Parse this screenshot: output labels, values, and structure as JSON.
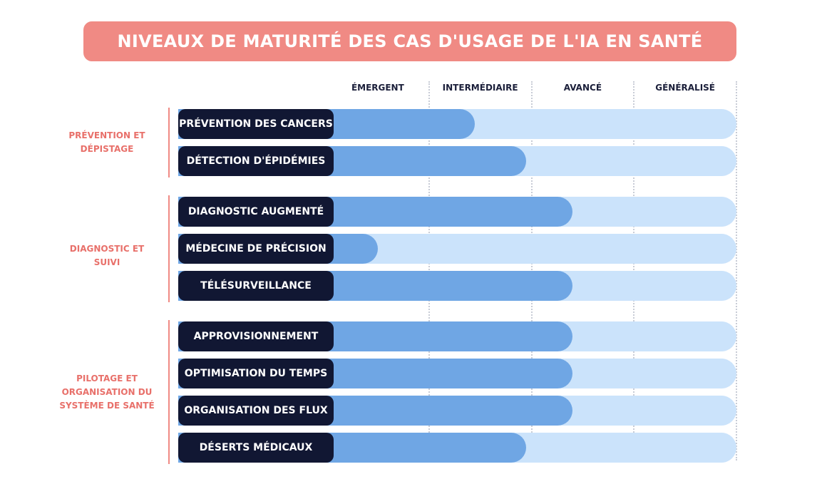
{
  "title": "NIVEAUX DE MATURITÉ DES CAS D'USAGE DE L'IA EN SANTÉ",
  "colors": {
    "title_background": "#f08a84",
    "group_label": "#e8706a",
    "pill": "#111733",
    "maturity_fill": "#6fa6e4",
    "track": "#cbe3fb"
  },
  "chart_data": {
    "type": "bar",
    "orientation": "horizontal",
    "levels": [
      "ÉMERGENT",
      "INTERMÉDIAIRE",
      "AVANCÉ",
      "GÉNÉRALISÉ"
    ],
    "value_scale": "0 = start of ÉMERGENT, 4 = end of GÉNÉRALISÉ",
    "xlim": [
      0,
      4
    ],
    "grid": true,
    "groups": [
      {
        "label": "PRÉVENTION ET\nDÉPISTAGE",
        "items": [
          {
            "label": "PRÉVENTION DES CANCERS",
            "value": 1.45
          },
          {
            "label": "DÉTECTION D'ÉPIDÉMIES",
            "value": 1.95
          }
        ]
      },
      {
        "label": "DIAGNOSTIC ET SUIVI",
        "items": [
          {
            "label": "DIAGNOSTIC AUGMENTÉ",
            "value": 2.4
          },
          {
            "label": "MÉDECINE DE PRÉCISION",
            "value": 0.5
          },
          {
            "label": "TÉLÉSURVEILLANCE",
            "value": 2.4
          }
        ]
      },
      {
        "label": "PILOTAGE ET\nORGANISATION DU\nSYSTÈME DE SANTÉ",
        "items": [
          {
            "label": "APPROVISIONNEMENT",
            "value": 2.4
          },
          {
            "label": "OPTIMISATION DU TEMPS",
            "value": 2.4
          },
          {
            "label": "ORGANISATION DES FLUX",
            "value": 2.4
          },
          {
            "label": "DÉSERTS MÉDICAUX",
            "value": 1.95
          }
        ]
      }
    ]
  }
}
